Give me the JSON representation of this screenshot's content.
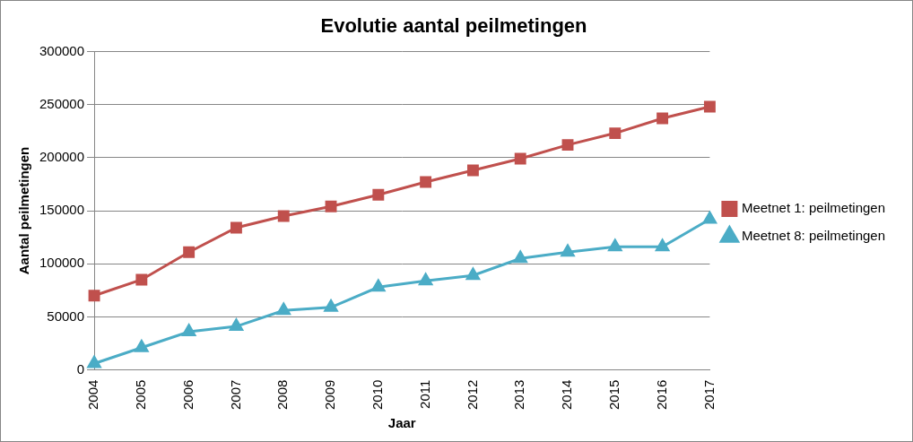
{
  "chart_data": {
    "type": "line",
    "title": "Evolutie aantal peilmetingen",
    "x_label": "Jaar",
    "y_label": "Aantal peilmetingen",
    "categories": [
      "2004",
      "2005",
      "2006",
      "2007",
      "2008",
      "2009",
      "2010",
      "2011",
      "2012",
      "2013",
      "2014",
      "2015",
      "2016",
      "2017"
    ],
    "series": [
      {
        "name": "Meetnet 1: peilmetingen",
        "color": "#c0504d",
        "marker": "square",
        "values": [
          70000,
          85000,
          111000,
          134000,
          145000,
          154000,
          165000,
          177000,
          188000,
          199000,
          212000,
          223000,
          237000,
          248000
        ]
      },
      {
        "name": "Meetnet 8: peilmetingen",
        "color": "#4bacc6",
        "marker": "triangle",
        "values": [
          6000,
          21000,
          36000,
          41000,
          56000,
          59000,
          78000,
          84000,
          89000,
          105000,
          111000,
          116000,
          116000,
          142000
        ]
      }
    ],
    "ylim": [
      0,
      300000
    ],
    "yticks": [
      0,
      50000,
      100000,
      150000,
      200000,
      250000,
      300000
    ],
    "grid": true,
    "legend": "right"
  }
}
